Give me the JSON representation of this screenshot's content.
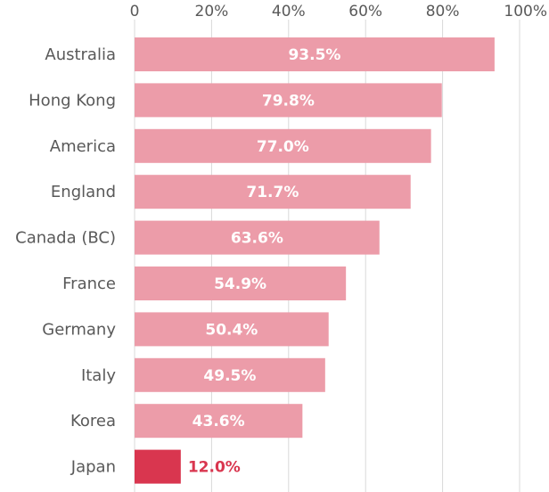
{
  "chart_data": {
    "type": "bar",
    "orientation": "horizontal",
    "title": "",
    "xlabel": "",
    "ylabel": "",
    "xlim": [
      0,
      100
    ],
    "ticks": [
      {
        "value": 0,
        "label": "0"
      },
      {
        "value": 20,
        "label": "20%"
      },
      {
        "value": 40,
        "label": "40%"
      },
      {
        "value": 60,
        "label": "60%"
      },
      {
        "value": 80,
        "label": "80%"
      },
      {
        "value": 100,
        "label": "100%"
      }
    ],
    "grid": true,
    "categories": [
      "Australia",
      "Hong Kong",
      "America",
      "England",
      "Canada (BC)",
      "France",
      "Germany",
      "Italy",
      "Korea",
      "Japan"
    ],
    "values": [
      93.5,
      79.8,
      77.0,
      71.7,
      63.6,
      54.9,
      50.4,
      49.5,
      43.6,
      12.0
    ],
    "value_labels": [
      "93.5%",
      "79.8%",
      "77.0%",
      "71.7%",
      "63.6%",
      "54.9%",
      "50.4%",
      "49.5%",
      "43.6%",
      "12.0%"
    ],
    "highlight": "Japan",
    "colors": {
      "bar": "#ec9ca9",
      "highlight_bar": "#d9364f",
      "label_inside": "#ffffff",
      "label_highlight": "#d9364f"
    }
  }
}
